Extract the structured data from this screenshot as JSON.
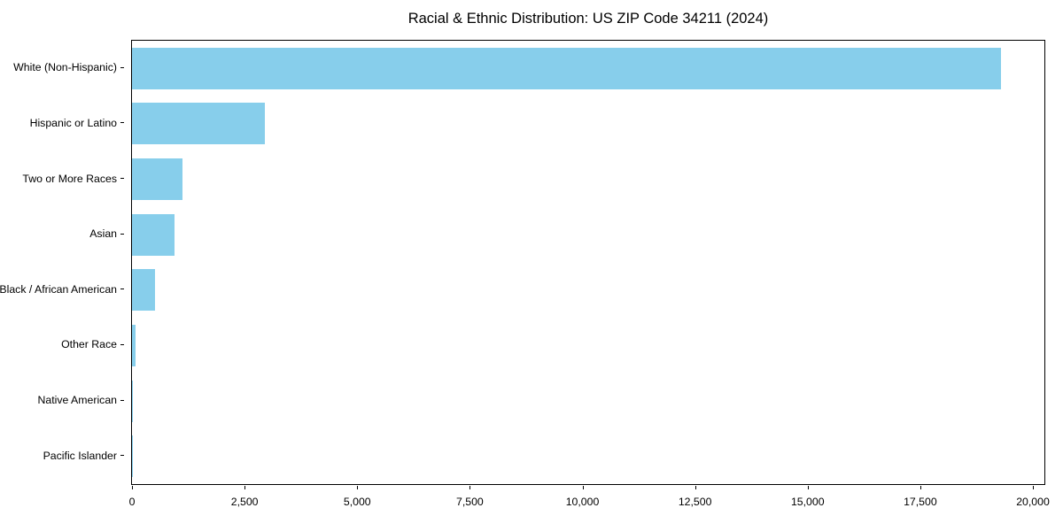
{
  "title": "Racial & Ethnic Distribution: US ZIP Code 34211 (2024)",
  "chart_data": {
    "type": "bar",
    "orientation": "horizontal",
    "title": "Racial & Ethnic Distribution: US ZIP Code 34211 (2024)",
    "xlabel": "",
    "ylabel": "",
    "categories": [
      "White (Non-Hispanic)",
      "Hispanic or Latino",
      "Two or More Races",
      "Asian",
      "Black / African American",
      "Other Race",
      "Native American",
      "Pacific Islander"
    ],
    "values": [
      19300,
      2950,
      1120,
      940,
      510,
      85,
      25,
      10
    ],
    "xlim": [
      0,
      20000
    ],
    "x_ticks": [
      0,
      2500,
      5000,
      7500,
      10000,
      12500,
      15000,
      17500,
      20000
    ],
    "x_tick_labels": [
      "0",
      "2,500",
      "5,000",
      "7,500",
      "10,000",
      "12,500",
      "15,000",
      "17,500",
      "20,000"
    ],
    "bar_color": "#87CEEB",
    "grid": false,
    "legend": false
  }
}
